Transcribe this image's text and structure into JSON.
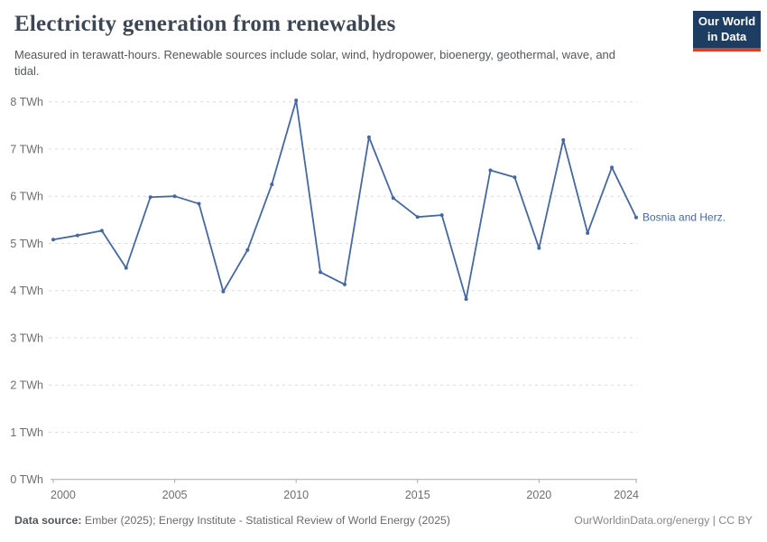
{
  "header": {
    "title": "Electricity generation from renewables",
    "subtitle": "Measured in terawatt-hours. Renewable sources include solar, wind, hydropower, bioenergy, geothermal, wave, and tidal.",
    "logo": {
      "line1": "Our World",
      "line2": "in Data"
    }
  },
  "chart_data": {
    "type": "line",
    "title": "Electricity generation from renewables",
    "unit": "TWh",
    "grid": "horizontal-dashed",
    "legend": "line-end-label",
    "ylim": [
      0,
      8
    ],
    "yticks": [
      0,
      1,
      2,
      3,
      4,
      5,
      6,
      7,
      8
    ],
    "ytick_labels": [
      "0 TWh",
      "1 TWh",
      "2 TWh",
      "3 TWh",
      "4 TWh",
      "5 TWh",
      "6 TWh",
      "7 TWh",
      "8 TWh"
    ],
    "xticks": [
      2000,
      2005,
      2010,
      2015,
      2020,
      2024
    ],
    "x": [
      2000,
      2001,
      2002,
      2003,
      2004,
      2005,
      2006,
      2007,
      2008,
      2009,
      2010,
      2011,
      2012,
      2013,
      2014,
      2015,
      2016,
      2017,
      2018,
      2019,
      2020,
      2021,
      2022,
      2023,
      2024
    ],
    "series": [
      {
        "name": "Bosnia and Herz.",
        "color": "#4568a2",
        "values": [
          5.08,
          5.17,
          5.27,
          4.48,
          5.98,
          6.0,
          5.84,
          3.98,
          4.86,
          6.25,
          8.03,
          4.39,
          4.13,
          7.25,
          5.96,
          5.56,
          5.6,
          3.82,
          6.55,
          6.4,
          4.9,
          7.19,
          5.22,
          6.61,
          5.55
        ]
      }
    ]
  },
  "footer": {
    "source_label": "Data source:",
    "source_text": "Ember (2025); Energy Institute - Statistical Review of World Energy (2025)",
    "credit": "OurWorldinData.org/energy | CC BY"
  },
  "colors": {
    "series_blue": "#4568a2",
    "logo_navy": "#1d3d63",
    "logo_red": "#d5402f",
    "grid": "#dcdcdc",
    "axis": "#a8a8a8",
    "axis_text": "#6e6e6e"
  }
}
